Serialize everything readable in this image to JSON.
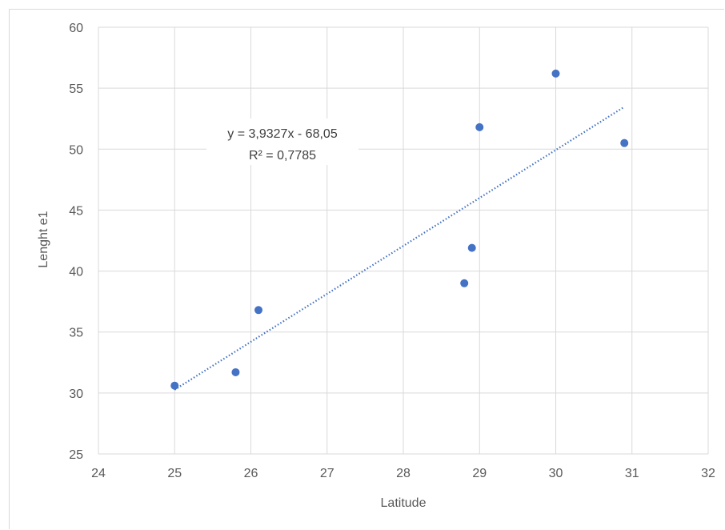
{
  "chart_data": {
    "type": "scatter",
    "title": "",
    "xlabel": "Latitude",
    "ylabel": "Lenght e1",
    "xlim": [
      24,
      32
    ],
    "ylim": [
      25,
      60
    ],
    "xticks": [
      24,
      25,
      26,
      27,
      28,
      29,
      30,
      31,
      32
    ],
    "yticks": [
      25,
      30,
      35,
      40,
      45,
      50,
      55,
      60
    ],
    "grid": true,
    "legend": "none",
    "series": [
      {
        "color": "#4472c4",
        "points": [
          {
            "x": 25.0,
            "y": 30.6
          },
          {
            "x": 25.8,
            "y": 31.7
          },
          {
            "x": 26.1,
            "y": 36.8
          },
          {
            "x": 28.8,
            "y": 39.0
          },
          {
            "x": 28.9,
            "y": 41.9
          },
          {
            "x": 29.0,
            "y": 51.8
          },
          {
            "x": 30.0,
            "y": 56.2
          },
          {
            "x": 30.9,
            "y": 50.5
          }
        ]
      }
    ],
    "trendline": {
      "type": "linear",
      "slope": 3.9327,
      "intercept": -68.05,
      "x_range": [
        25.0,
        30.9
      ],
      "color": "#4472c4",
      "style": "dotted",
      "equation": "y = 3,9327x - 68,05",
      "r_squared": "R² = 0,7785"
    },
    "colors": {
      "grid": "#d9d9d9",
      "text": "#595959"
    }
  }
}
